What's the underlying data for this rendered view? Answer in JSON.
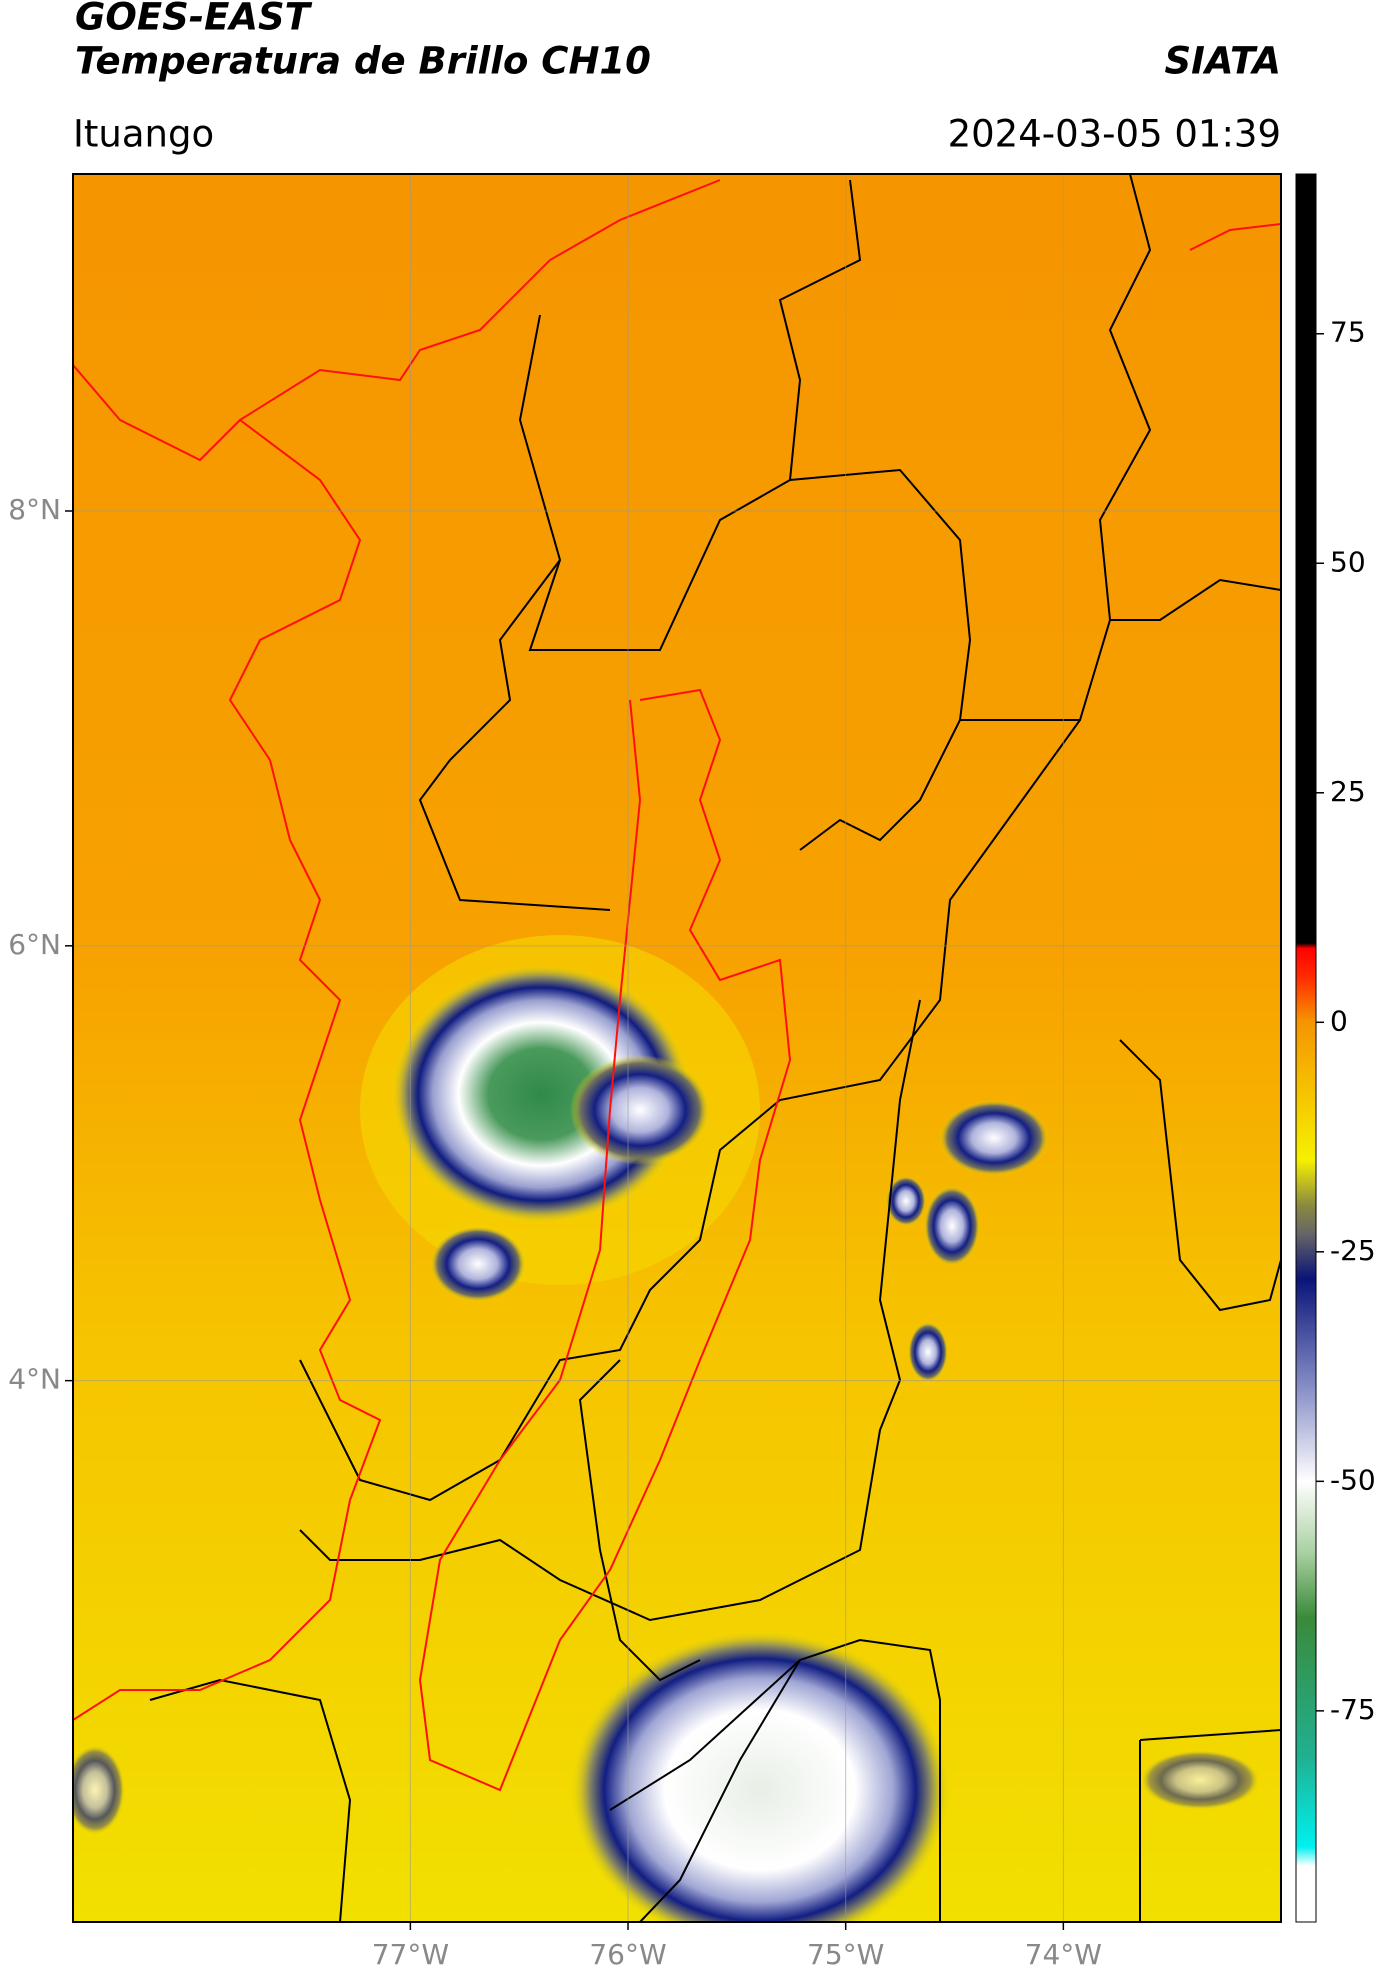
{
  "header": {
    "title_line1": "GOES-EAST",
    "title_line2": "Temperatura de Brillo CH10",
    "brand": "SIATA",
    "location": "Ituango",
    "timestamp": "2024-03-05 01:39"
  },
  "map": {
    "lat_lim": [
      1.51,
      9.55
    ],
    "lon_lim": [
      -78.55,
      -73.0
    ],
    "lat_ticks": [
      {
        "value": 8,
        "label": "8°N"
      },
      {
        "value": 6,
        "label": "6°N"
      },
      {
        "value": 4,
        "label": "4°N"
      }
    ],
    "lon_ticks": [
      {
        "value": -77,
        "label": "77°W"
      },
      {
        "value": -76,
        "label": "76°W"
      },
      {
        "value": -75,
        "label": "75°W"
      },
      {
        "value": -74,
        "label": "74°W"
      }
    ],
    "grid": true
  },
  "colorbar": {
    "lim": [
      -98,
      92.4
    ],
    "ticks": [
      75,
      50,
      25,
      0,
      -25,
      -50,
      -75
    ]
  }
}
